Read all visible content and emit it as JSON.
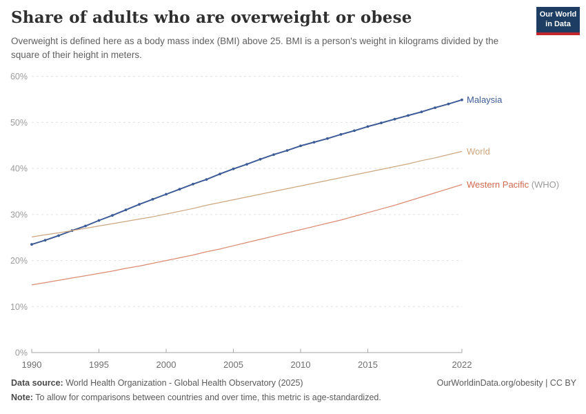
{
  "header": {
    "title": "Share of adults who are overweight or obese",
    "subtitle": "Overweight is defined here as a body mass index (BMI) above 25. BMI is a person's weight in kilograms divided by the square of their height in meters.",
    "logo": {
      "line1": "Our World",
      "line2": "in Data",
      "bg_color": "#1d3d63",
      "accent_color": "#c1272d"
    }
  },
  "chart_data": {
    "type": "line",
    "title": "Share of adults who are overweight or obese",
    "xlabel": "",
    "ylabel": "",
    "xlim": [
      1990,
      2022
    ],
    "ylim": [
      0,
      60
    ],
    "grid": "horizontal-dashed",
    "legend_position": "right-end-labels",
    "xticks": [
      1990,
      1995,
      2000,
      2005,
      2010,
      2015,
      2022
    ],
    "yticks": [
      0,
      10,
      20,
      30,
      40,
      50,
      60
    ],
    "ytick_suffix": "%",
    "x": [
      1990,
      1991,
      1992,
      1993,
      1994,
      1995,
      1996,
      1997,
      1998,
      1999,
      2000,
      2001,
      2002,
      2003,
      2004,
      2005,
      2006,
      2007,
      2008,
      2009,
      2010,
      2011,
      2012,
      2013,
      2014,
      2015,
      2016,
      2017,
      2018,
      2019,
      2020,
      2021,
      2022
    ],
    "series": [
      {
        "name": "Malaysia",
        "label": "Malaysia",
        "color": "#3d5b96",
        "markers": true,
        "values": [
          23.5,
          24.4,
          25.4,
          26.5,
          27.5,
          28.7,
          29.8,
          31.0,
          32.2,
          33.3,
          34.4,
          35.5,
          36.6,
          37.6,
          38.8,
          39.9,
          40.9,
          42.0,
          43.0,
          43.9,
          44.9,
          45.7,
          46.5,
          47.4,
          48.2,
          49.1,
          49.9,
          50.7,
          51.5,
          52.3,
          53.2,
          54.0,
          54.9
        ]
      },
      {
        "name": "World",
        "label": "World",
        "color": "#cda67f",
        "markers": false,
        "values": [
          25.1,
          25.6,
          26.0,
          26.5,
          27.0,
          27.5,
          28.0,
          28.5,
          29.0,
          29.5,
          30.1,
          30.7,
          31.3,
          32.0,
          32.6,
          33.2,
          33.8,
          34.4,
          35.0,
          35.6,
          36.2,
          36.8,
          37.4,
          38.0,
          38.6,
          39.2,
          39.8,
          40.4,
          41.0,
          41.7,
          42.3,
          43.0,
          43.7
        ]
      },
      {
        "name": "Western Pacific (WHO)",
        "label": "Western Pacific",
        "label_suffix": " (WHO)",
        "label_suffix_color": "#9a9a9a",
        "color": "#dd8a72",
        "label_color": "#d0694f",
        "markers": false,
        "values": [
          14.7,
          15.2,
          15.7,
          16.2,
          16.7,
          17.2,
          17.7,
          18.3,
          18.8,
          19.4,
          20.0,
          20.6,
          21.2,
          21.9,
          22.5,
          23.2,
          23.9,
          24.6,
          25.3,
          26.0,
          26.7,
          27.4,
          28.1,
          28.8,
          29.6,
          30.4,
          31.2,
          32.0,
          32.9,
          33.8,
          34.7,
          35.6,
          36.5
        ]
      }
    ],
    "colors": {
      "gridline": "#e0e0e0",
      "axis": "#a5a5a5",
      "ytick_label": "#9b9b9b",
      "xtick_label": "#6e6e6e"
    }
  },
  "footer": {
    "source_label": "Data source:",
    "source_text": " World Health Organization - Global Health Observatory (2025)",
    "note_label": "Note:",
    "note_text": " To allow for comparisons between countries and over time, this metric is age-standardized.",
    "link_text": "OurWorldinData.org/obesity | CC BY"
  }
}
